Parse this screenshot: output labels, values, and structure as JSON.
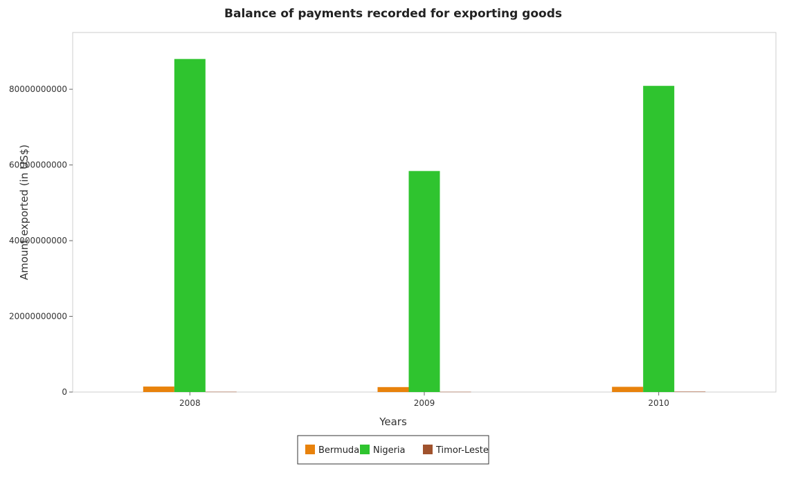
{
  "chart_data": {
    "type": "bar",
    "title": "Balance of payments recorded for exporting goods",
    "xlabel": "Years",
    "ylabel": "Amount exported (in US$)",
    "categories": [
      "2008",
      "2009",
      "2010"
    ],
    "ylim": [
      0,
      95000000000
    ],
    "yticks": [
      0,
      20000000000,
      40000000000,
      60000000000,
      80000000000
    ],
    "ytick_labels": [
      "0",
      "20000000000",
      "40000000000",
      "60000000000",
      "80000000000"
    ],
    "grid": false,
    "legend_position": "bottom",
    "series": [
      {
        "name": "Bermuda",
        "color": "#e8820c",
        "values": [
          1450000000,
          1310000000,
          1380000000
        ]
      },
      {
        "name": "Nigeria",
        "color": "#2fc42f",
        "values": [
          88000000000,
          58400000000,
          80900000000
        ]
      },
      {
        "name": "Timor-Leste",
        "color": "#a0522d",
        "values": [
          70000000,
          60000000,
          110000000
        ]
      }
    ]
  }
}
